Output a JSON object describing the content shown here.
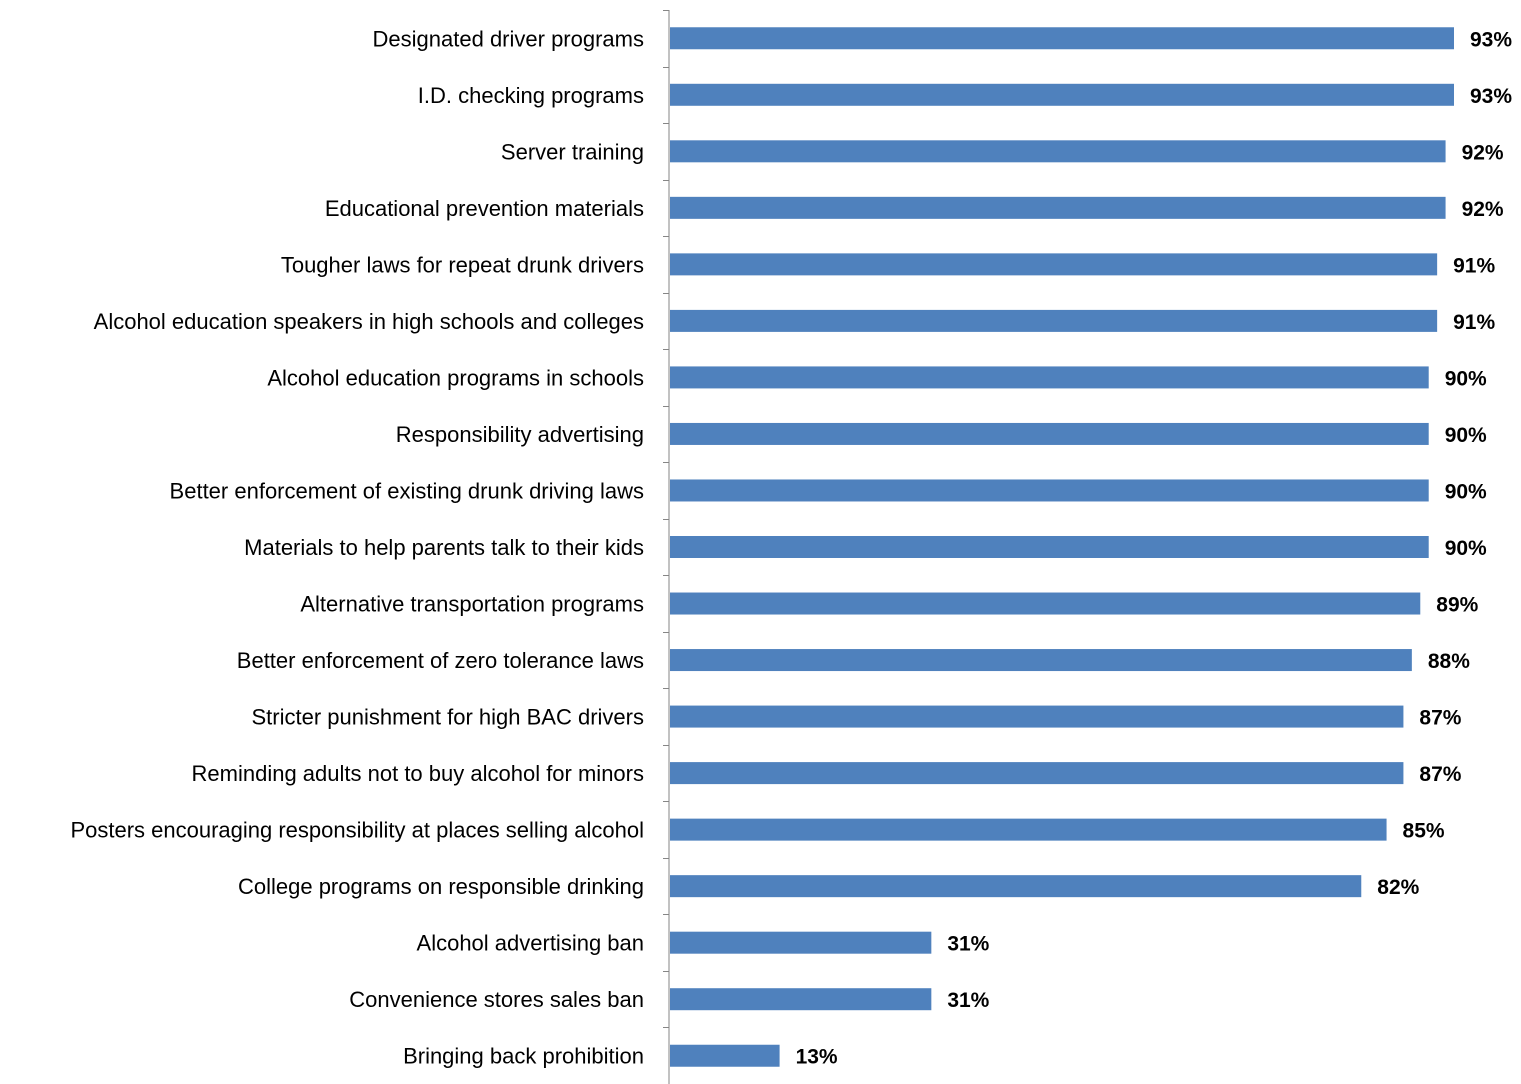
{
  "chart_data": {
    "type": "bar",
    "orientation": "horizontal",
    "categories": [
      "Designated driver programs",
      "I.D. checking programs",
      "Server training",
      "Educational prevention materials",
      "Tougher laws for repeat drunk drivers",
      "Alcohol education speakers in high schools and colleges",
      "Alcohol education programs in schools",
      "Responsibility advertising",
      "Better enforcement of existing drunk driving laws",
      "Materials to help parents talk to their kids",
      "Alternative transportation programs",
      "Better enforcement of zero tolerance laws",
      "Stricter punishment for  high BAC drivers",
      "Reminding adults not to buy alcohol for minors",
      "Posters encouraging responsibility at places selling alcohol",
      "College programs on responsible drinking",
      "Alcohol advertising ban",
      "Convenience stores sales ban",
      "Bringing back prohibition"
    ],
    "values": [
      93,
      93,
      92,
      92,
      91,
      91,
      90,
      90,
      90,
      90,
      89,
      88,
      87,
      87,
      85,
      82,
      31,
      31,
      13
    ],
    "value_labels": [
      "93%",
      "93%",
      "92%",
      "92%",
      "91%",
      "91%",
      "90%",
      "90%",
      "90%",
      "90%",
      "89%",
      "88%",
      "87%",
      "87%",
      "85%",
      "82%",
      "31%",
      "31%",
      "13%"
    ],
    "xlim": [
      0,
      100
    ],
    "grid": false,
    "bar_color": "#4F81BD",
    "axis_color": "#868686"
  }
}
